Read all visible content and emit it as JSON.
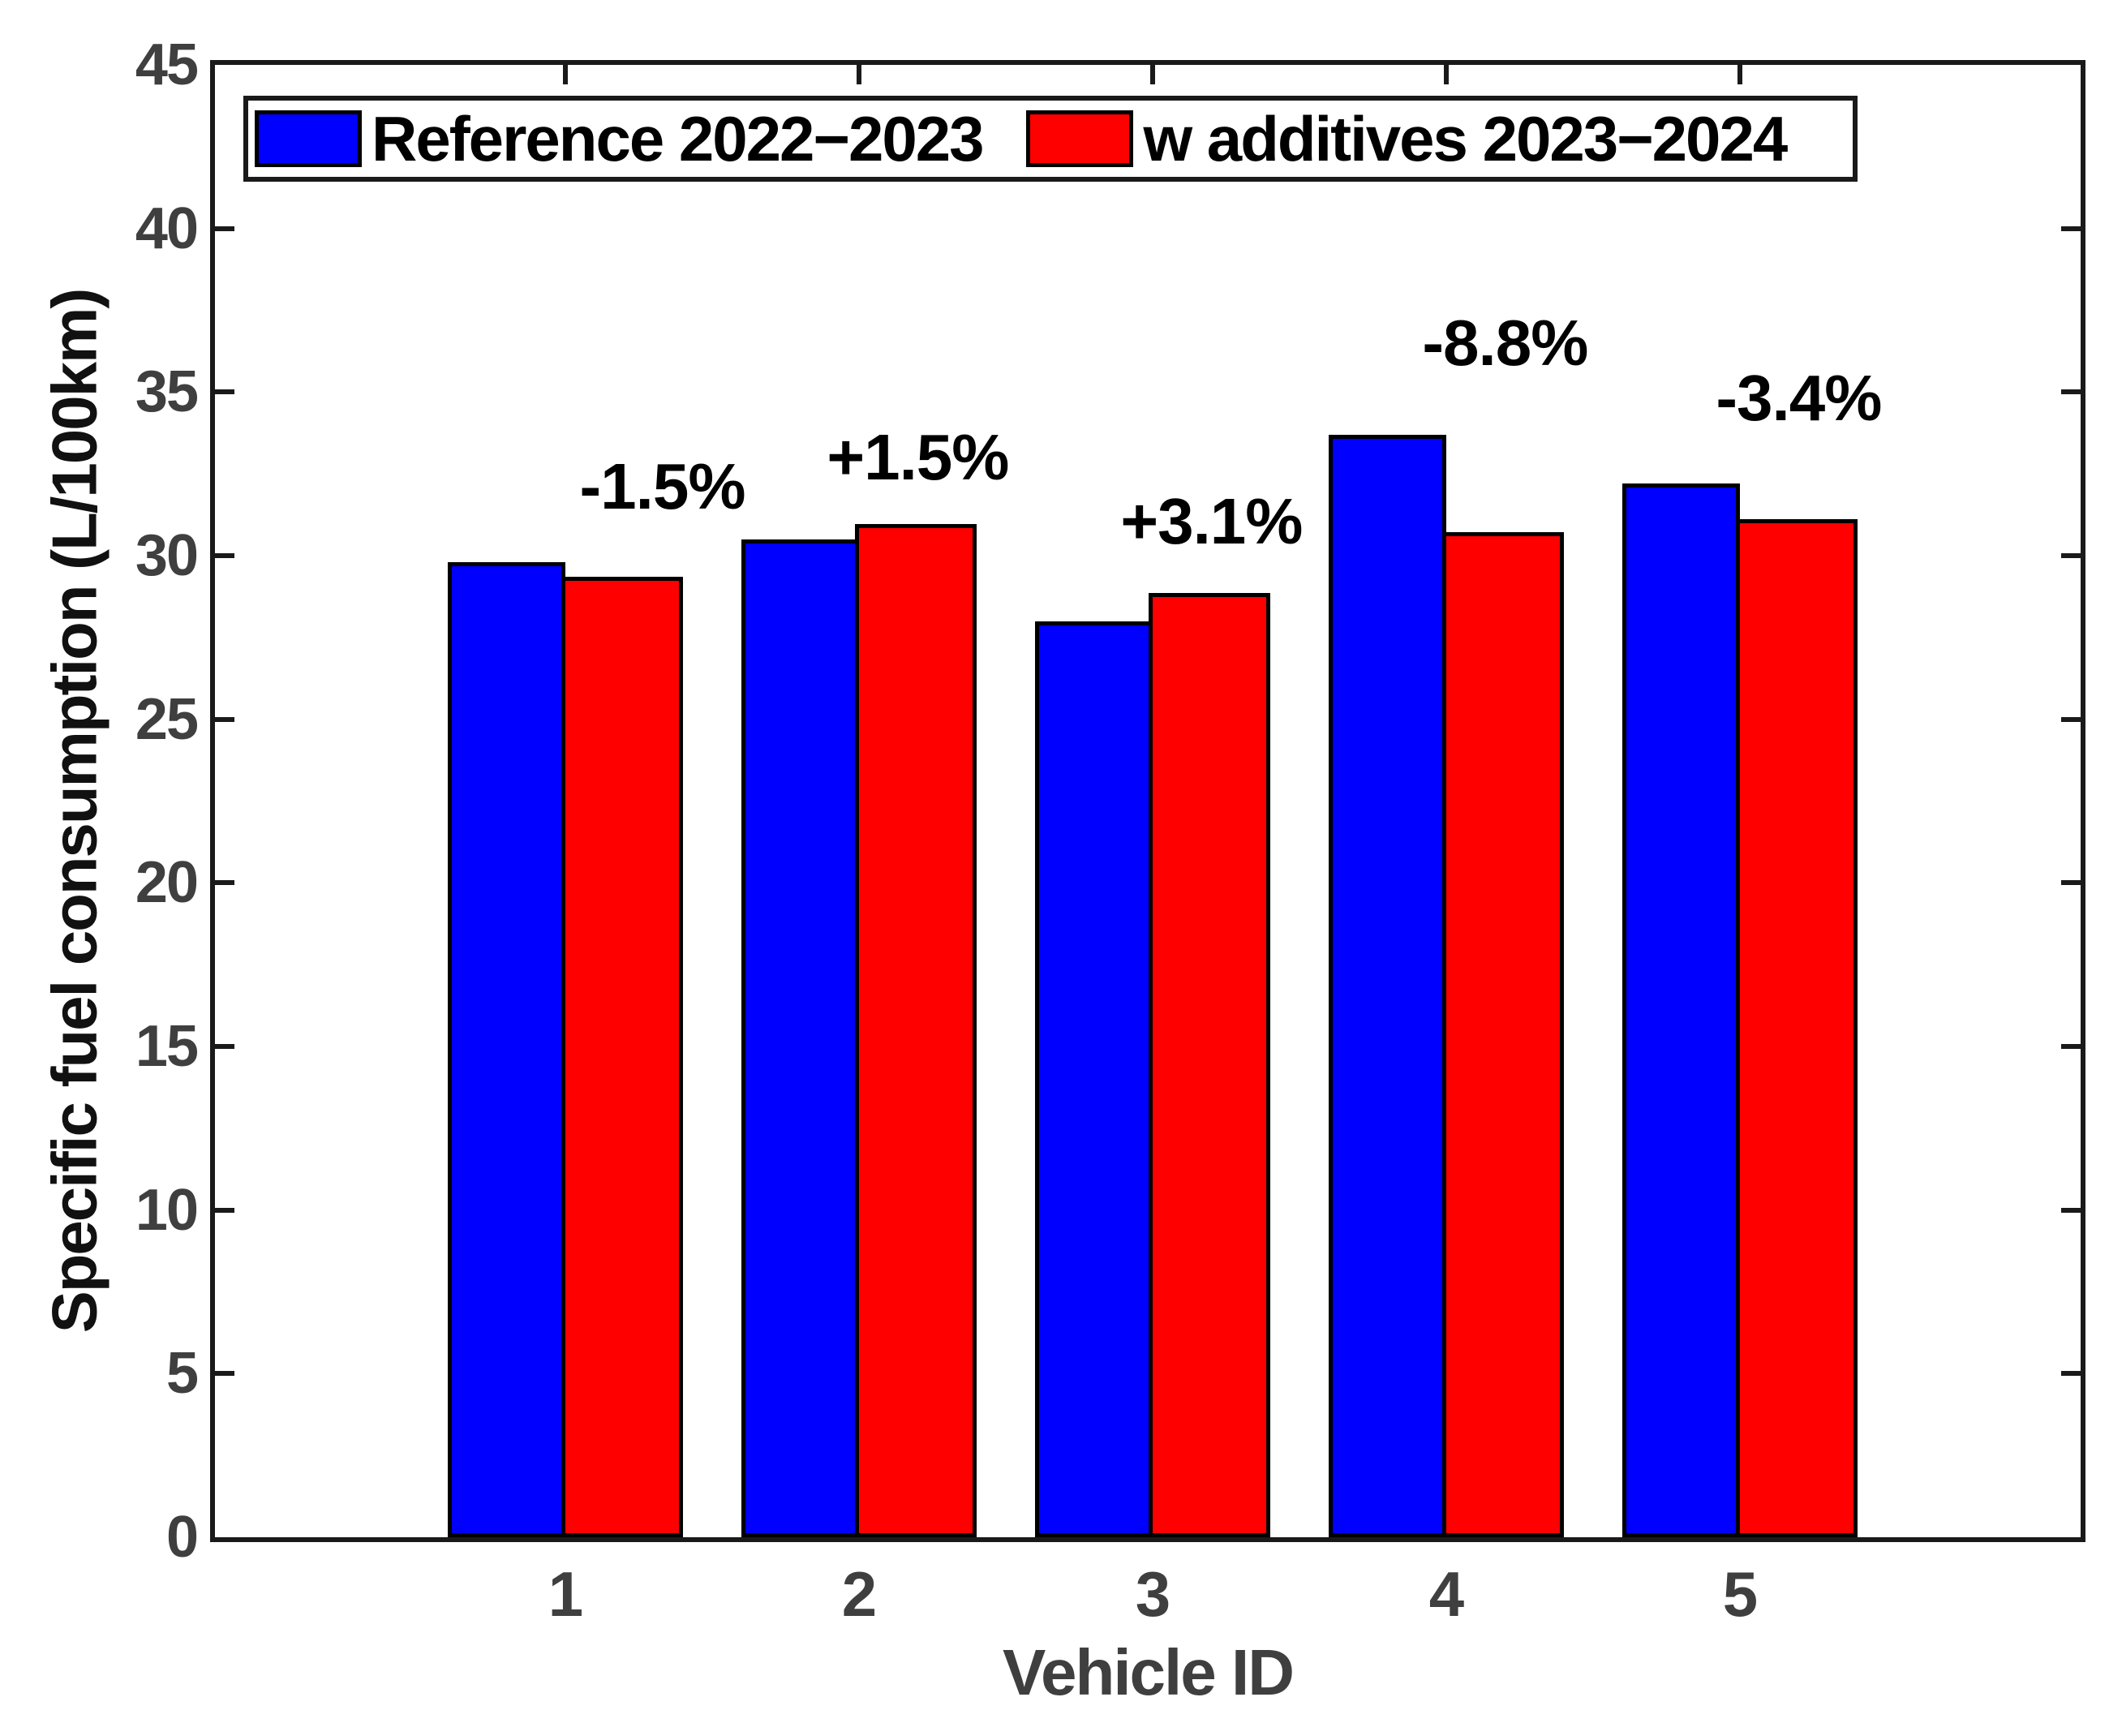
{
  "chart_data": {
    "type": "bar",
    "categories": [
      "1",
      "2",
      "3",
      "4",
      "5"
    ],
    "series": [
      {
        "name": "Reference 2022−2023",
        "color": "#0000ff",
        "values": [
          29.8,
          30.5,
          28.0,
          33.7,
          32.2
        ]
      },
      {
        "name": "w additives 2023−2024",
        "color": "#ff0000",
        "values": [
          29.35,
          30.96,
          28.87,
          30.73,
          31.11
        ]
      }
    ],
    "annotations": [
      {
        "text": "-1.5%",
        "x": 1.33,
        "y": 32.1
      },
      {
        "text": "+1.5%",
        "x": 2.2,
        "y": 33.0
      },
      {
        "text": "+3.1%",
        "x": 3.2,
        "y": 31.05
      },
      {
        "text": "-8.8%",
        "x": 4.2,
        "y": 36.5
      },
      {
        "text": "-3.4%",
        "x": 5.2,
        "y": 34.8
      }
    ],
    "xlabel": "Vehicle ID",
    "ylabel": "Specific fuel consumption (L/100km)",
    "ylim": [
      0,
      45
    ],
    "yticks": [
      0,
      5,
      10,
      15,
      20,
      25,
      30,
      35,
      40,
      45
    ],
    "grid": false,
    "legend_position": "top-inside",
    "bar_edge_color": "#000000",
    "axis_color": "#1a1a1a",
    "tick_label_color": "#3f3f3f"
  }
}
